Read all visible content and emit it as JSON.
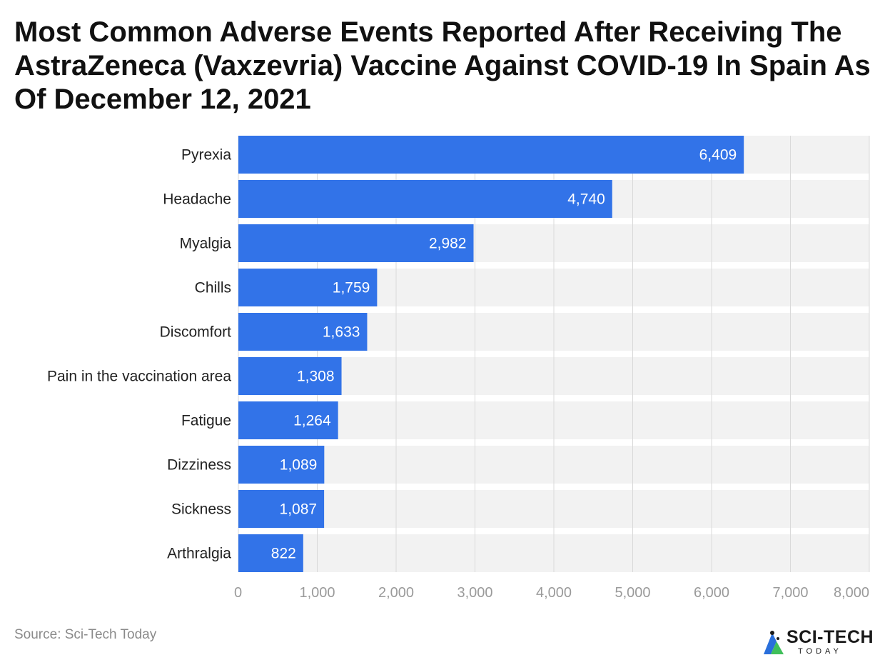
{
  "title": "Most Common Adverse Events Reported After Receiving The AstraZeneca (Vaxzevria) Vaccine Against COVID-19 In Spain As Of December 12, 2021",
  "source": "Source: Sci-Tech Today",
  "logo": {
    "name": "SCI-TECH",
    "sub": "TODAY",
    "icon": "sci-tech-logo-icon"
  },
  "colors": {
    "bar": "#3273e8",
    "band": "#f2f2f2",
    "grid": "#d9d9d9",
    "label": "#222222",
    "tick": "#9a9a9a",
    "value_label": "#ffffff"
  },
  "chart_data": {
    "type": "bar",
    "orientation": "horizontal",
    "title": "Most Common Adverse Events Reported After Receiving The AstraZeneca (Vaxzevria) Vaccine Against COVID-19 In Spain As Of December 12, 2021",
    "categories": [
      "Pyrexia",
      "Headache",
      "Myalgia",
      "Chills",
      "Discomfort",
      "Pain in the vaccination area",
      "Fatigue",
      "Dizziness",
      "Sickness",
      "Arthralgia"
    ],
    "values": [
      6409,
      4740,
      2982,
      1759,
      1633,
      1308,
      1264,
      1089,
      1087,
      822
    ],
    "value_labels": [
      "6,409",
      "4,740",
      "2,982",
      "1,759",
      "1,633",
      "1,308",
      "1,264",
      "1,089",
      "1,087",
      "822"
    ],
    "xlim": [
      0,
      8000
    ],
    "xticks": [
      0,
      1000,
      2000,
      3000,
      4000,
      5000,
      6000,
      7000,
      8000
    ],
    "xtick_labels": [
      "0",
      "1,000",
      "2,000",
      "3,000",
      "4,000",
      "5,000",
      "6,000",
      "7,000",
      "8,000"
    ],
    "xlabel": "",
    "ylabel": "",
    "grid": true,
    "legend": "none"
  }
}
